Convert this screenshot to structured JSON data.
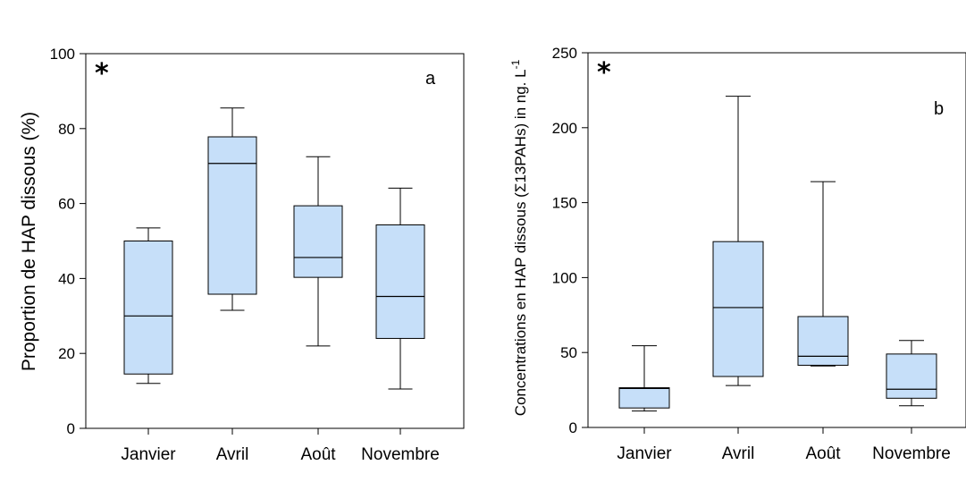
{
  "chart_data": [
    {
      "type": "box",
      "panel_label": "a",
      "marker": "*",
      "ylabel": "Proportion de HAP dissous (%)",
      "ylim": [
        0,
        100
      ],
      "yticks": [
        0,
        20,
        40,
        60,
        80,
        100
      ],
      "categories": [
        "Janvier",
        "Avril",
        "Août",
        "Novembre"
      ],
      "box_color": "#c6dff9",
      "boxes": [
        {
          "category": "Janvier",
          "whisker_low": 12,
          "q1": 14.5,
          "median": 30,
          "q3": 50,
          "whisker_high": 53.5
        },
        {
          "category": "Avril",
          "whisker_low": 31.5,
          "q1": 35.8,
          "median": 70.7,
          "q3": 77.8,
          "whisker_high": 85.5
        },
        {
          "category": "Août",
          "whisker_low": 22,
          "q1": 40.3,
          "median": 45.6,
          "q3": 59.4,
          "whisker_high": 72.5
        },
        {
          "category": "Novembre",
          "whisker_low": 10.5,
          "q1": 24,
          "median": 35.2,
          "q3": 54.3,
          "whisker_high": 64.1
        }
      ]
    },
    {
      "type": "box",
      "panel_label": "b",
      "marker": "*",
      "ylabel_parts": {
        "main": "Concentrations en HAP dissous (Σ13PAHs) in ng. L",
        "sup": "-1"
      },
      "ylim": [
        0,
        250
      ],
      "yticks": [
        0,
        50,
        100,
        150,
        200,
        250
      ],
      "categories": [
        "Janvier",
        "Avril",
        "Août",
        "Novembre"
      ],
      "box_color": "#c6dff9",
      "boxes": [
        {
          "category": "Janvier",
          "whisker_low": 11,
          "q1": 13,
          "median": 26,
          "q3": 26.5,
          "whisker_high": 54.5
        },
        {
          "category": "Avril",
          "whisker_low": 28,
          "q1": 34,
          "median": 80,
          "q3": 124,
          "whisker_high": 221
        },
        {
          "category": "Août",
          "whisker_low": 41,
          "q1": 41.5,
          "median": 47.5,
          "q3": 74,
          "whisker_high": 164
        },
        {
          "category": "Novembre",
          "whisker_low": 14.5,
          "q1": 19.5,
          "median": 25.5,
          "q3": 49,
          "whisker_high": 58
        }
      ]
    }
  ]
}
